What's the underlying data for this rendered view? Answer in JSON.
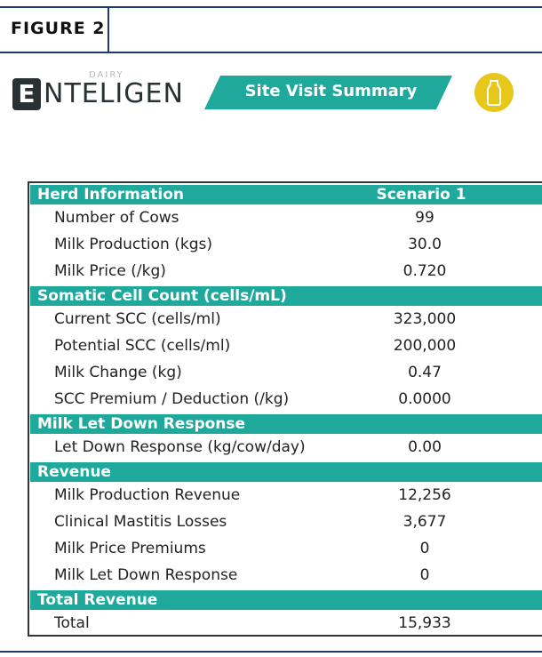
{
  "header": {
    "figure_label": "FIGURE 2",
    "logo_small": "DAIRY",
    "logo_initial": "E",
    "logo_rest": "NTELIGEN",
    "banner": "Site Visit Summary"
  },
  "table": {
    "column_header": "Scenario 1",
    "sections": [
      {
        "title": "Herd Information",
        "rows": [
          [
            "Number of Cows",
            "99"
          ],
          [
            "Milk Production (kgs)",
            "30.0"
          ],
          [
            "Milk Price (/kg)",
            "0.720"
          ]
        ]
      },
      {
        "title": "Somatic Cell Count (cells/mL)",
        "rows": [
          [
            "Current SCC (cells/ml)",
            "323,000"
          ],
          [
            "Potential SCC (cells/ml)",
            "200,000"
          ],
          [
            "Milk Change (kg)",
            "0.47"
          ],
          [
            "SCC Premium / Deduction (/kg)",
            "0.0000"
          ]
        ]
      },
      {
        "title": "Milk Let Down Response",
        "rows": [
          [
            "Let Down Response (kg/cow/day)",
            "0.00"
          ]
        ]
      },
      {
        "title": "Revenue",
        "rows": [
          [
            "Milk Production Revenue",
            "12,256"
          ],
          [
            "Clinical Mastitis Losses",
            "3,677"
          ],
          [
            "Milk Price Premiums",
            "0"
          ],
          [
            "Milk Let Down Response",
            "0"
          ]
        ]
      },
      {
        "title": "Total Revenue",
        "rows": [
          [
            "Total",
            "15,933"
          ]
        ]
      }
    ]
  }
}
